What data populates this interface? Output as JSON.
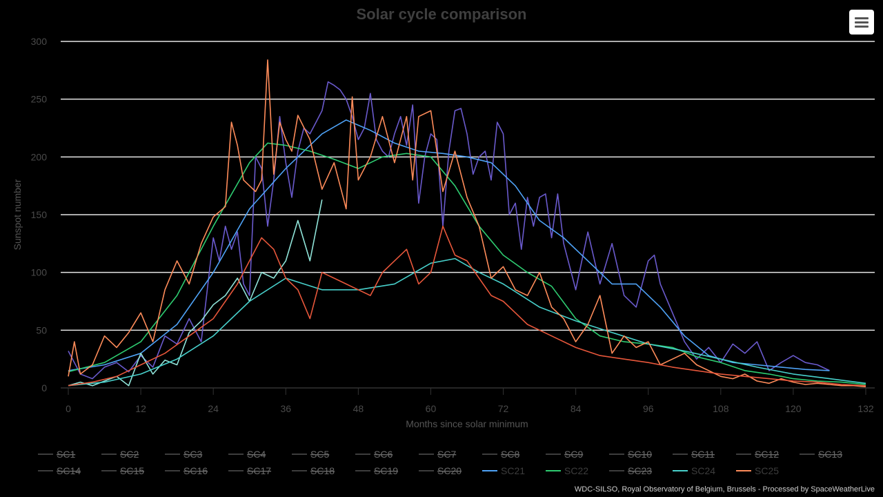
{
  "page": {
    "menu_icon": "hamburger-menu-icon",
    "credits": "WDC-SILSO, Royal Observatory of Belgium, Brussels - Processed by SpaceWeatherLive"
  },
  "chart_data": {
    "type": "line",
    "title": "Solar cycle comparison",
    "xlabel": "Months since solar minimum",
    "ylabel": "Sunspot number",
    "xlim": [
      0,
      132
    ],
    "ylim": [
      0,
      300
    ],
    "x_ticks": [
      0,
      12,
      24,
      36,
      48,
      60,
      72,
      84,
      96,
      108,
      120,
      132
    ],
    "y_ticks": [
      0,
      50,
      100,
      150,
      200,
      250,
      300
    ],
    "grid": "horizontal",
    "legend_position": "bottom",
    "colors": {
      "background": "#000000",
      "grid": "#e6e6e6",
      "title": "#3f3f3f",
      "hidden_legend": "#6a6a6a",
      "visible_legend": "#3d3d3d"
    },
    "legend": [
      {
        "name": "SC1",
        "visible": false,
        "color": "#666666"
      },
      {
        "name": "SC2",
        "visible": false,
        "color": "#666666"
      },
      {
        "name": "SC3",
        "visible": false,
        "color": "#666666"
      },
      {
        "name": "SC4",
        "visible": false,
        "color": "#666666"
      },
      {
        "name": "SC5",
        "visible": false,
        "color": "#666666"
      },
      {
        "name": "SC6",
        "visible": false,
        "color": "#666666"
      },
      {
        "name": "SC7",
        "visible": false,
        "color": "#666666"
      },
      {
        "name": "SC8",
        "visible": false,
        "color": "#666666"
      },
      {
        "name": "SC9",
        "visible": false,
        "color": "#666666"
      },
      {
        "name": "SC10",
        "visible": false,
        "color": "#666666"
      },
      {
        "name": "SC11",
        "visible": false,
        "color": "#666666"
      },
      {
        "name": "SC12",
        "visible": false,
        "color": "#666666"
      },
      {
        "name": "SC13",
        "visible": false,
        "color": "#666666"
      },
      {
        "name": "SC14",
        "visible": false,
        "color": "#666666"
      },
      {
        "name": "SC15",
        "visible": false,
        "color": "#666666"
      },
      {
        "name": "SC16",
        "visible": false,
        "color": "#666666"
      },
      {
        "name": "SC17",
        "visible": false,
        "color": "#666666"
      },
      {
        "name": "SC18",
        "visible": false,
        "color": "#666666"
      },
      {
        "name": "SC19",
        "visible": false,
        "color": "#666666"
      },
      {
        "name": "SC20",
        "visible": false,
        "color": "#666666"
      },
      {
        "name": "SC21",
        "visible": true,
        "color": "#4fa3f7"
      },
      {
        "name": "SC22",
        "visible": true,
        "color": "#2ecc71"
      },
      {
        "name": "SC23",
        "visible": false,
        "color": "#666666"
      },
      {
        "name": "SC24",
        "visible": true,
        "color": "#48d1cc"
      },
      {
        "name": "SC25",
        "visible": true,
        "color": "#ff8c5a"
      }
    ],
    "series": [
      {
        "name": "SC21 monthly",
        "color": "#6a5acd",
        "x": [
          0,
          2,
          4,
          6,
          8,
          10,
          12,
          14,
          16,
          18,
          20,
          22,
          24,
          25,
          26,
          27,
          28,
          29,
          30,
          31,
          32,
          33,
          34,
          35,
          36,
          37,
          38,
          39,
          40,
          41,
          42,
          43,
          44,
          45,
          46,
          47,
          48,
          49,
          50,
          51,
          52,
          53,
          54,
          55,
          56,
          57,
          58,
          59,
          60,
          61,
          62,
          63,
          64,
          65,
          66,
          67,
          68,
          69,
          70,
          71,
          72,
          73,
          74,
          75,
          76,
          77,
          78,
          79,
          80,
          81,
          82,
          84,
          86,
          88,
          90,
          92,
          94,
          96,
          97,
          98,
          100,
          102,
          104,
          106,
          108,
          110,
          112,
          114,
          116,
          118,
          120,
          122,
          124,
          126
        ],
        "y": [
          32,
          12,
          8,
          18,
          22,
          14,
          28,
          18,
          45,
          38,
          60,
          40,
          130,
          110,
          140,
          120,
          135,
          90,
          80,
          200,
          190,
          140,
          180,
          235,
          195,
          165,
          205,
          225,
          220,
          230,
          240,
          265,
          262,
          258,
          250,
          235,
          215,
          225,
          255,
          215,
          205,
          200,
          220,
          235,
          210,
          245,
          160,
          200,
          220,
          215,
          140,
          205,
          240,
          242,
          220,
          185,
          200,
          205,
          180,
          230,
          220,
          150,
          160,
          120,
          165,
          140,
          165,
          168,
          130,
          168,
          125,
          85,
          135,
          90,
          125,
          80,
          70,
          110,
          115,
          90,
          65,
          40,
          25,
          35,
          22,
          38,
          30,
          40,
          15,
          22,
          28,
          22,
          20,
          15
        ]
      },
      {
        "name": "SC21 smoothed",
        "color": "#4fa3f7",
        "x": [
          0,
          6,
          12,
          18,
          24,
          30,
          36,
          42,
          46,
          50,
          54,
          58,
          62,
          66,
          70,
          74,
          78,
          82,
          86,
          90,
          94,
          98,
          102,
          106,
          110,
          114,
          118,
          122,
          126
        ],
        "y": [
          15,
          20,
          30,
          55,
          100,
          155,
          190,
          220,
          232,
          223,
          212,
          205,
          203,
          200,
          195,
          175,
          145,
          130,
          110,
          90,
          90,
          70,
          45,
          28,
          22,
          20,
          18,
          16,
          15
        ]
      },
      {
        "name": "SC22 smoothed",
        "color": "#2ecc71",
        "x": [
          0,
          6,
          12,
          18,
          24,
          30,
          33,
          36,
          40,
          44,
          48,
          52,
          56,
          60,
          64,
          68,
          72,
          76,
          80,
          84,
          88,
          92,
          96,
          100,
          104,
          108,
          112,
          116,
          120,
          124,
          128,
          132
        ],
        "y": [
          14,
          22,
          40,
          80,
          140,
          195,
          212,
          210,
          205,
          198,
          190,
          200,
          203,
          200,
          175,
          140,
          115,
          100,
          88,
          60,
          45,
          40,
          38,
          35,
          27,
          22,
          15,
          12,
          8,
          6,
          5,
          3
        ]
      },
      {
        "name": "SC24 monthly",
        "color": "#90e4d9",
        "x": [
          0,
          2,
          4,
          6,
          8,
          10,
          12,
          14,
          16,
          18,
          20,
          22,
          24,
          26,
          28,
          30,
          32,
          34,
          36,
          38,
          40,
          42
        ],
        "y": [
          2,
          5,
          2,
          6,
          10,
          2,
          30,
          12,
          24,
          20,
          48,
          58,
          72,
          80,
          95,
          75,
          100,
          95,
          110,
          145,
          110,
          163
        ]
      },
      {
        "name": "SC24 smoothed",
        "color": "#48d1cc",
        "x": [
          0,
          6,
          12,
          18,
          24,
          30,
          36,
          42,
          48,
          54,
          60,
          64,
          68,
          72,
          78,
          84,
          90,
          96,
          102,
          108,
          114,
          120,
          126,
          132
        ],
        "y": [
          2,
          5,
          12,
          25,
          45,
          75,
          95,
          85,
          85,
          90,
          108,
          112,
          100,
          90,
          70,
          58,
          48,
          38,
          32,
          25,
          18,
          12,
          8,
          4
        ]
      },
      {
        "name": "SC25 monthly",
        "color": "#ff8c5a",
        "x": [
          0,
          1,
          2,
          4,
          6,
          8,
          10,
          12,
          14,
          16,
          18,
          20,
          22,
          24,
          26,
          27,
          28,
          29,
          30,
          31,
          32,
          33,
          34,
          35,
          36,
          37,
          38,
          40,
          42,
          44,
          46,
          47,
          48,
          50,
          52,
          54,
          56,
          57,
          58,
          60,
          62,
          64,
          66,
          68,
          70,
          72,
          74,
          76,
          78,
          80,
          82,
          84,
          86,
          88,
          90,
          92,
          94,
          96,
          98,
          100,
          102,
          104,
          106,
          108,
          110,
          112,
          114,
          116,
          118,
          120,
          122,
          124,
          126,
          128,
          130,
          132
        ],
        "y": [
          10,
          40,
          12,
          20,
          45,
          35,
          48,
          65,
          40,
          85,
          110,
          90,
          125,
          148,
          157,
          230,
          210,
          180,
          175,
          170,
          180,
          284,
          185,
          230,
          215,
          205,
          236,
          215,
          172,
          195,
          155,
          252,
          180,
          200,
          235,
          195,
          235,
          180,
          235,
          240,
          170,
          205,
          165,
          140,
          95,
          105,
          85,
          80,
          100,
          70,
          60,
          40,
          55,
          80,
          30,
          45,
          35,
          40,
          20,
          25,
          30,
          20,
          15,
          10,
          8,
          12,
          6,
          4,
          8,
          5,
          3,
          4,
          3,
          2,
          2,
          1
        ]
      },
      {
        "name": "SC25 red",
        "color": "#e8573b",
        "x": [
          0,
          4,
          8,
          12,
          16,
          20,
          24,
          26,
          28,
          30,
          32,
          34,
          36,
          38,
          40,
          42,
          44,
          46,
          48,
          50,
          52,
          54,
          56,
          58,
          60,
          62,
          64,
          66,
          68,
          70,
          72,
          74,
          76,
          78,
          80,
          84,
          88,
          92,
          96,
          100,
          104,
          108,
          112,
          116,
          120,
          124,
          128,
          132
        ],
        "y": [
          2,
          5,
          10,
          20,
          30,
          45,
          60,
          75,
          90,
          110,
          130,
          120,
          95,
          85,
          60,
          100,
          95,
          90,
          85,
          80,
          100,
          110,
          120,
          90,
          100,
          140,
          115,
          110,
          95,
          80,
          75,
          65,
          55,
          50,
          45,
          35,
          28,
          25,
          22,
          18,
          15,
          12,
          10,
          8,
          6,
          5,
          3,
          2
        ]
      }
    ]
  }
}
